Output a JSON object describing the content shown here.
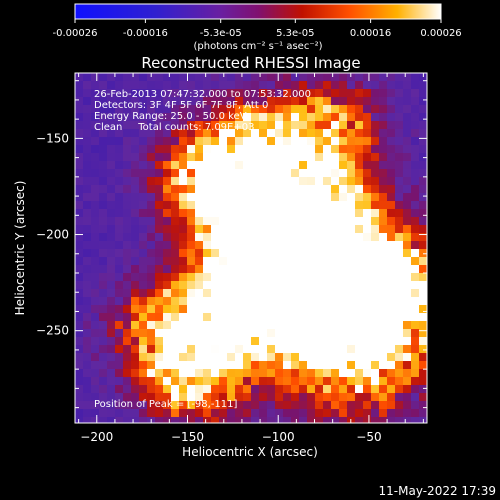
{
  "colorbar": {
    "tick_labels": [
      "-0.00026",
      "-0.00016",
      "-5.3e-05",
      "5.3e-05",
      "0.00016",
      "0.00026"
    ],
    "tick_values": [
      -0.00026,
      -0.00016,
      -5.3e-05,
      5.3e-05,
      0.00016,
      0.00026
    ],
    "units_html": "(photons cm⁻² s⁻¹ asec⁻²)",
    "range": [
      -0.00026,
      0.00026
    ]
  },
  "chart_data": {
    "type": "heatmap",
    "title": "Reconstructed RHESSI Image",
    "xlabel": "Heliocentric X (arcsec)",
    "ylabel": "Heliocentric Y (arcsec)",
    "xlim": [
      -212,
      -18
    ],
    "ylim": [
      -298,
      -116
    ],
    "x_ticks": [
      -200,
      -150,
      -100,
      -50
    ],
    "x_tick_labels": [
      "−200",
      "−150",
      "−100",
      "−50"
    ],
    "y_ticks": [
      -150,
      -200,
      -250
    ],
    "y_tick_labels": [
      "−150",
      "−200",
      "−250"
    ],
    "annotations": [
      "26-Feb-2013 07:47:32.000 to 07:53:32.000",
      "Detectors: 3F 4F 5F 6F 7F 8F, Att 0",
      "Energy Range: 25.0 - 50.0 keV",
      "Clean     Total counts: 7.09E+03"
    ],
    "peak_label": "Position of Peak = [-98,-111]",
    "peak_position": [
      -98,
      -111
    ]
  },
  "footer": {
    "timestamp": "11-May-2022 17:39"
  }
}
